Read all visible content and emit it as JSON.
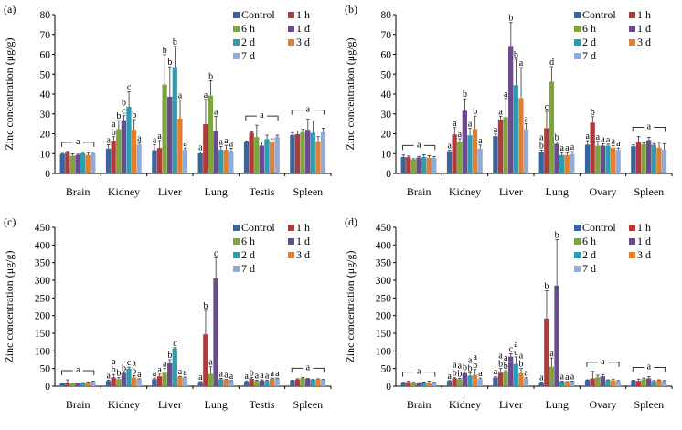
{
  "legend": {
    "series": [
      "Control",
      "1 h",
      "6 h",
      "1 d",
      "2 d",
      "3 d",
      "7 d"
    ],
    "colors": [
      "#3a64a0",
      "#b03a3a",
      "#7ea43e",
      "#6a4b8e",
      "#2f9bb0",
      "#e07f30",
      "#93a9d6"
    ]
  },
  "chart_data": [
    {
      "panel_label": "(a)",
      "type": "bar",
      "ylabel": "Zinc concentration (μg/g)",
      "ylim": [
        0,
        80
      ],
      "yticks": [
        0,
        10,
        20,
        30,
        40,
        50,
        60,
        70,
        80
      ],
      "categories": [
        "Brain",
        "Kidney",
        "Liver",
        "Lung",
        "Testis",
        "Spleen"
      ],
      "series": [
        {
          "name": "Control",
          "values": [
            9.8,
            12.5,
            11.7,
            10.2,
            15.8,
            19.4
          ],
          "errors": [
            0.3,
            2,
            2.8,
            0.6,
            0.6,
            1.2
          ]
        },
        {
          "name": "1 h",
          "values": [
            10.5,
            16.5,
            12.8,
            24.8,
            20.5,
            19.8
          ],
          "errors": [
            0.6,
            2,
            3.8,
            12.5,
            0.4,
            1.6
          ]
        },
        {
          "name": "6 h",
          "values": [
            8.9,
            22.3,
            44.8,
            39.2,
            18.3,
            20.8
          ],
          "errors": [
            1.0,
            4.3,
            15,
            7.5,
            6,
            1.4
          ]
        },
        {
          "name": "1 d",
          "values": [
            9.3,
            26.8,
            38.7,
            21.2,
            14,
            22
          ],
          "errors": [
            0.4,
            2.3,
            15,
            7.5,
            1.8,
            5.3
          ]
        },
        {
          "name": "2 d",
          "values": [
            10.2,
            33.6,
            53.5,
            12,
            17.3,
            20.5
          ],
          "errors": [
            0.5,
            7.5,
            10.5,
            1.6,
            2,
            6
          ]
        },
        {
          "name": "3 d",
          "values": [
            9.3,
            22,
            27.6,
            11.8,
            16,
            16.2
          ],
          "errors": [
            1.2,
            5.2,
            9.5,
            2.4,
            1.4,
            2.3
          ]
        },
        {
          "name": "7 d",
          "values": [
            10.4,
            14.6,
            12,
            11.2,
            18.5,
            20.8
          ],
          "errors": [
            0.4,
            0.7,
            0.8,
            1.5,
            0.8,
            2
          ]
        }
      ],
      "annotations": [
        {
          "category": "Brain",
          "group_label": "a"
        },
        {
          "category": "Kidney",
          "labels": [
            "a",
            "a b",
            "b",
            "b c",
            "c",
            "b",
            "a"
          ]
        },
        {
          "category": "Liver",
          "labels": [
            "a",
            "a",
            "b",
            "b",
            "b",
            "a",
            "a"
          ]
        },
        {
          "category": "Lung",
          "labels": [
            "a",
            "a",
            "b",
            "a",
            "a",
            "a",
            "a"
          ]
        },
        {
          "category": "Testis",
          "group_label": "a"
        },
        {
          "category": "Spleen",
          "group_label": "a"
        }
      ]
    },
    {
      "panel_label": "(b)",
      "type": "bar",
      "ylabel": "Zinc concentration (μg/g)",
      "ylim": [
        0,
        80
      ],
      "yticks": [
        0,
        10,
        20,
        30,
        40,
        50,
        60,
        70,
        80
      ],
      "categories": [
        "Brain",
        "Kidney",
        "Liver",
        "Lung",
        "Ovary",
        "Spleen"
      ],
      "series": [
        {
          "name": "Control",
          "values": [
            8.3,
            11.2,
            18.8,
            10.8,
            14.5,
            13.7
          ],
          "errors": [
            1,
            0.5,
            1,
            1,
            2,
            0.7
          ]
        },
        {
          "name": "1 h",
          "values": [
            8.2,
            19.7,
            27.2,
            22.8,
            25.6,
            15.6
          ],
          "errors": [
            0.6,
            3.4,
            1.6,
            8.5,
            3,
            3
          ]
        },
        {
          "name": "6 h",
          "values": [
            7,
            16,
            28.3,
            46.2,
            14,
            14.8
          ],
          "errors": [
            0.4,
            1.5,
            9.5,
            7.6,
            2.2,
            0.6
          ]
        },
        {
          "name": "1 d",
          "values": [
            8,
            31.6,
            64.2,
            15,
            14,
            16.8
          ],
          "errors": [
            0.6,
            6,
            11.8,
            0.9,
            1,
            1.4
          ]
        },
        {
          "name": "2 d",
          "values": [
            8.3,
            19.2,
            44.5,
            9.3,
            14,
            14.5
          ],
          "errors": [
            1.2,
            3.5,
            13,
            1.2,
            0.8,
            0.6
          ]
        },
        {
          "name": "3 d",
          "values": [
            7.8,
            22.3,
            38,
            9.3,
            13,
            13
          ],
          "errors": [
            1.2,
            6.6,
            15.3,
            1.2,
            1,
            2.7
          ]
        },
        {
          "name": "7 d",
          "values": [
            7.8,
            12.5,
            22.3,
            9.8,
            11.8,
            12
          ],
          "errors": [
            0.7,
            1.8,
            2.8,
            1.2,
            1,
            3
          ]
        }
      ],
      "annotations": [
        {
          "category": "Brain",
          "group_label": "a"
        },
        {
          "category": "Kidney",
          "labels": [
            "a",
            "a",
            "a",
            "b",
            "a",
            "b",
            "a"
          ]
        },
        {
          "category": "Liver",
          "labels": [
            "a",
            "a",
            "a",
            "b",
            "b",
            "a",
            "a"
          ]
        },
        {
          "category": "Lung",
          "labels": [
            "a b",
            "c",
            "d",
            "b",
            "a",
            "a",
            "a"
          ]
        },
        {
          "category": "Ovary",
          "labels": [
            "a",
            "b",
            "a",
            "a",
            "a",
            "a",
            "a"
          ]
        },
        {
          "category": "Spleen",
          "group_label": "a"
        }
      ]
    },
    {
      "panel_label": "(c)",
      "type": "bar",
      "ylabel": "Zinc concentration (μg/g)",
      "ylim": [
        0,
        450
      ],
      "yticks": [
        0,
        50,
        100,
        150,
        200,
        250,
        300,
        350,
        400,
        450
      ],
      "categories": [
        "Brain",
        "Kidney",
        "Liver",
        "Lung",
        "Testis",
        "Spleen"
      ],
      "series": [
        {
          "name": "Control",
          "values": [
            8,
            15,
            20,
            12,
            13,
            16
          ],
          "errors": [
            1,
            2,
            3,
            1,
            2,
            1
          ]
        },
        {
          "name": "1 h",
          "values": [
            9,
            25,
            28,
            147,
            21,
            19
          ],
          "errors": [
            9,
            8,
            6,
            68,
            4,
            2
          ]
        },
        {
          "name": "6 h",
          "values": [
            8,
            20,
            38,
            35,
            15,
            23
          ],
          "errors": [
            1,
            4,
            12,
            20,
            2,
            2
          ]
        },
        {
          "name": "1 d",
          "values": [
            8,
            36,
            65,
            305,
            16,
            21
          ],
          "errors": [
            1,
            2,
            10,
            58,
            2,
            1
          ]
        },
        {
          "name": "2 d",
          "values": [
            9,
            50,
            107,
            20,
            15,
            18
          ],
          "errors": [
            1,
            4,
            2,
            2,
            2,
            1
          ]
        },
        {
          "name": "3 d",
          "values": [
            11,
            25,
            27,
            18,
            22,
            20
          ],
          "errors": [
            1,
            5,
            1,
            1,
            1,
            1
          ]
        },
        {
          "name": "7 d",
          "values": [
            13,
            20,
            25,
            15,
            22,
            18
          ],
          "errors": [
            1,
            1,
            1,
            1,
            1,
            1
          ]
        }
      ],
      "annotations": [
        {
          "category": "Brain",
          "group_label": "a"
        },
        {
          "category": "Kidney",
          "labels": [
            "a",
            "a b",
            "b",
            "b",
            "c",
            "a b",
            "a"
          ]
        },
        {
          "category": "Liver",
          "labels": [
            "a",
            "a",
            "a",
            "b",
            "c",
            "a",
            "a"
          ]
        },
        {
          "category": "Lung",
          "labels": [
            "a",
            "b",
            "a",
            "c",
            "a",
            "a",
            "a"
          ]
        },
        {
          "category": "Testis",
          "labels": [
            "a",
            "b",
            "a",
            "a",
            "a",
            "a",
            "a"
          ]
        },
        {
          "category": "Spleen",
          "group_label": "a"
        }
      ]
    },
    {
      "panel_label": "(d)",
      "type": "bar",
      "ylabel": "Zinc concentration (μg/g)",
      "ylim": [
        0,
        450
      ],
      "yticks": [
        0,
        50,
        100,
        150,
        200,
        250,
        300,
        350,
        400,
        450
      ],
      "categories": [
        "Brain",
        "Kidney",
        "Liver",
        "Lung",
        "Ovary",
        "Spleen"
      ],
      "series": [
        {
          "name": "Control",
          "values": [
            10,
            15,
            25,
            10,
            17,
            16
          ],
          "errors": [
            1,
            1,
            3,
            2,
            1,
            1
          ]
        },
        {
          "name": "1 h",
          "values": [
            12,
            22,
            38,
            192,
            22,
            15
          ],
          "errors": [
            2,
            2,
            12,
            78,
            20,
            5
          ]
        },
        {
          "name": "6 h",
          "values": [
            10,
            20,
            42,
            55,
            25,
            20
          ],
          "errors": [
            1,
            2,
            2,
            25,
            6,
            3
          ]
        },
        {
          "name": "1 d",
          "values": [
            9,
            37,
            84,
            285,
            28,
            22
          ],
          "errors": [
            1,
            3,
            8,
            130,
            5,
            5
          ]
        },
        {
          "name": "2 d",
          "values": [
            11,
            30,
            63,
            13,
            17,
            14
          ],
          "errors": [
            1,
            8,
            20,
            1,
            1,
            2
          ]
        },
        {
          "name": "3 d",
          "values": [
            11,
            32,
            37,
            12,
            17,
            17
          ],
          "errors": [
            3,
            15,
            13,
            1,
            3,
            1
          ]
        },
        {
          "name": "7 d",
          "values": [
            10,
            20,
            22,
            13,
            15,
            15
          ],
          "errors": [
            1,
            3,
            2,
            1,
            1,
            1
          ]
        }
      ],
      "annotations": [
        {
          "category": "Brain",
          "group_label": "a"
        },
        {
          "category": "Kidney",
          "labels": [
            "a",
            "a b",
            "a b",
            "b",
            "a b",
            "a b",
            "a"
          ]
        },
        {
          "category": "Liver",
          "labels": [
            "a",
            "a b",
            "a b",
            "c",
            "a c",
            "a b",
            "a"
          ]
        },
        {
          "category": "Lung",
          "labels": [
            "a",
            "b",
            "a",
            "b",
            "a",
            "a",
            "a"
          ]
        },
        {
          "category": "Ovary",
          "group_label": "a"
        },
        {
          "category": "Spleen",
          "group_label": "a"
        }
      ]
    }
  ]
}
